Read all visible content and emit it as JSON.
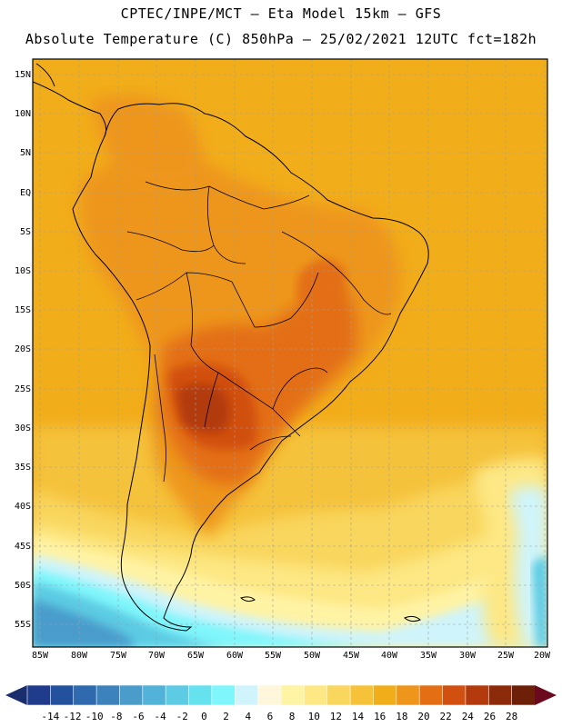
{
  "header": {
    "line1": "CPTEC/INPE/MCT –  Eta Model 15km – GFS",
    "line2": "Absolute Temperature (C) 850hPa – 25/02/2021 12UTC fct=182h"
  },
  "map": {
    "lat_labels": [
      "15N",
      "10N",
      "5N",
      "EQ",
      "5S",
      "10S",
      "15S",
      "20S",
      "25S",
      "30S",
      "35S",
      "40S",
      "45S",
      "50S",
      "55S"
    ],
    "lon_labels": [
      "85W",
      "80W",
      "75W",
      "70W",
      "65W",
      "60W",
      "55W",
      "50W",
      "45W",
      "40W",
      "35W",
      "30W",
      "25W",
      "20W"
    ]
  },
  "colorbar": {
    "labels": [
      "-14",
      "-12",
      "-10",
      "-8",
      "-6",
      "-4",
      "-2",
      "0",
      "2",
      "4",
      "6",
      "8",
      "10",
      "12",
      "14",
      "16",
      "18",
      "20",
      "22",
      "24",
      "26",
      "28"
    ],
    "colors": [
      "#1f3b8c",
      "#24519e",
      "#2f6aae",
      "#3c83be",
      "#4a9ccb",
      "#52b2d7",
      "#5ccbe3",
      "#66e2ee",
      "#7ff6fb",
      "#cff4fb",
      "#fff6dc",
      "#fff3a4",
      "#fde885",
      "#f9d65d",
      "#f5c23a",
      "#f2ad1a",
      "#ee961b",
      "#e36e14",
      "#d1500f",
      "#b23a0c",
      "#8c2b0a",
      "#6e1f08"
    ],
    "left_arrow_color": "#1a2e6e",
    "right_arrow_color": "#6b0a1f"
  }
}
